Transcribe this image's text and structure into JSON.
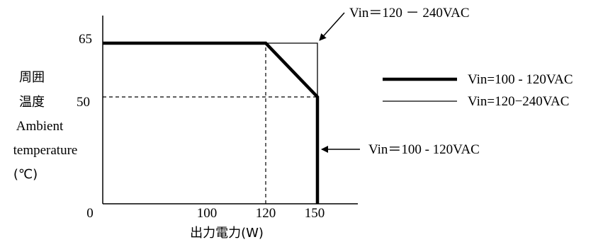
{
  "chart_data": {
    "type": "line",
    "xlabel": "出力電力(W)",
    "ylabel_lines": [
      "周囲",
      "温度",
      "Ambient",
      "temperature",
      "(℃)"
    ],
    "x_ticks": [
      {
        "value": 0,
        "label": "0"
      },
      {
        "value": 100,
        "label": "100"
      },
      {
        "value": 120,
        "label": "120"
      },
      {
        "value": 150,
        "label": "150"
      }
    ],
    "y_ticks": [
      {
        "value": 50,
        "label": "50"
      },
      {
        "value": 65,
        "label": "65"
      }
    ],
    "xlim": [
      0,
      180
    ],
    "ylim": [
      0,
      70
    ],
    "series": [
      {
        "name": "Vin=100 - 120VAC",
        "style": "thick",
        "color": "#000000",
        "x": [
          0,
          120,
          150,
          150
        ],
        "y": [
          65,
          65,
          50,
          0
        ]
      },
      {
        "name": "Vin=120−240VAC",
        "style": "thin",
        "color": "#000000",
        "x": [
          0,
          150,
          150
        ],
        "y": [
          65,
          65,
          50
        ]
      }
    ],
    "guide_lines": [
      {
        "kind": "vertical",
        "x": 120,
        "y_from": 0,
        "y_to": 65
      },
      {
        "kind": "horizontal",
        "y": 50,
        "x_from": 0,
        "x_to": 150
      }
    ],
    "annotations": [
      {
        "id": "top",
        "text": "Vin＝120 － 240VAC",
        "points_to": {
          "x": 150,
          "y": 65
        }
      },
      {
        "id": "mid",
        "text": "Vin＝100 - 120VAC",
        "points_to": {
          "x": 150,
          "y": 30
        }
      }
    ],
    "legend_placement": "right",
    "grid": false
  }
}
